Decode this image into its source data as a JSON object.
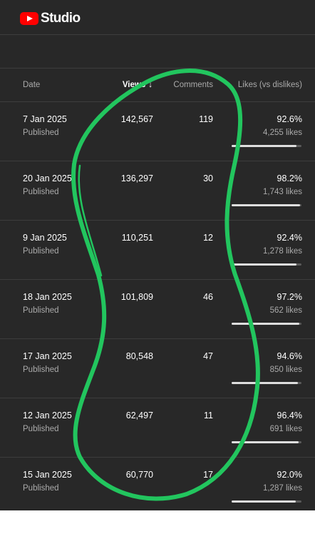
{
  "app": {
    "logo_text": "Studio"
  },
  "table": {
    "headers": {
      "date": "Date",
      "views": "Views",
      "sort_arrow": "↓",
      "comments": "Comments",
      "likes": "Likes (vs dislikes)"
    },
    "rows": [
      {
        "date": "7 Jan 2025",
        "status": "Published",
        "views": "142,567",
        "comments": "119",
        "likes_pct": "92.6%",
        "likes_count": "4,255 likes",
        "ratio": 0.926
      },
      {
        "date": "20 Jan 2025",
        "status": "Published",
        "views": "136,297",
        "comments": "30",
        "likes_pct": "98.2%",
        "likes_count": "1,743 likes",
        "ratio": 0.982
      },
      {
        "date": "9 Jan 2025",
        "status": "Published",
        "views": "110,251",
        "comments": "12",
        "likes_pct": "92.4%",
        "likes_count": "1,278 likes",
        "ratio": 0.924
      },
      {
        "date": "18 Jan 2025",
        "status": "Published",
        "views": "101,809",
        "comments": "46",
        "likes_pct": "97.2%",
        "likes_count": "562 likes",
        "ratio": 0.972
      },
      {
        "date": "17 Jan 2025",
        "status": "Published",
        "views": "80,548",
        "comments": "47",
        "likes_pct": "94.6%",
        "likes_count": "850 likes",
        "ratio": 0.946
      },
      {
        "date": "12 Jan 2025",
        "status": "Published",
        "views": "62,497",
        "comments": "11",
        "likes_pct": "96.4%",
        "likes_count": "691 likes",
        "ratio": 0.964
      },
      {
        "date": "15 Jan 2025",
        "status": "Published",
        "views": "60,770",
        "comments": "17",
        "likes_pct": "92.0%",
        "likes_count": "1,287 likes",
        "ratio": 0.92
      }
    ]
  },
  "colors": {
    "background": "#282828",
    "brand_red": "#ff0000",
    "annotation_green": "#22c55e"
  }
}
